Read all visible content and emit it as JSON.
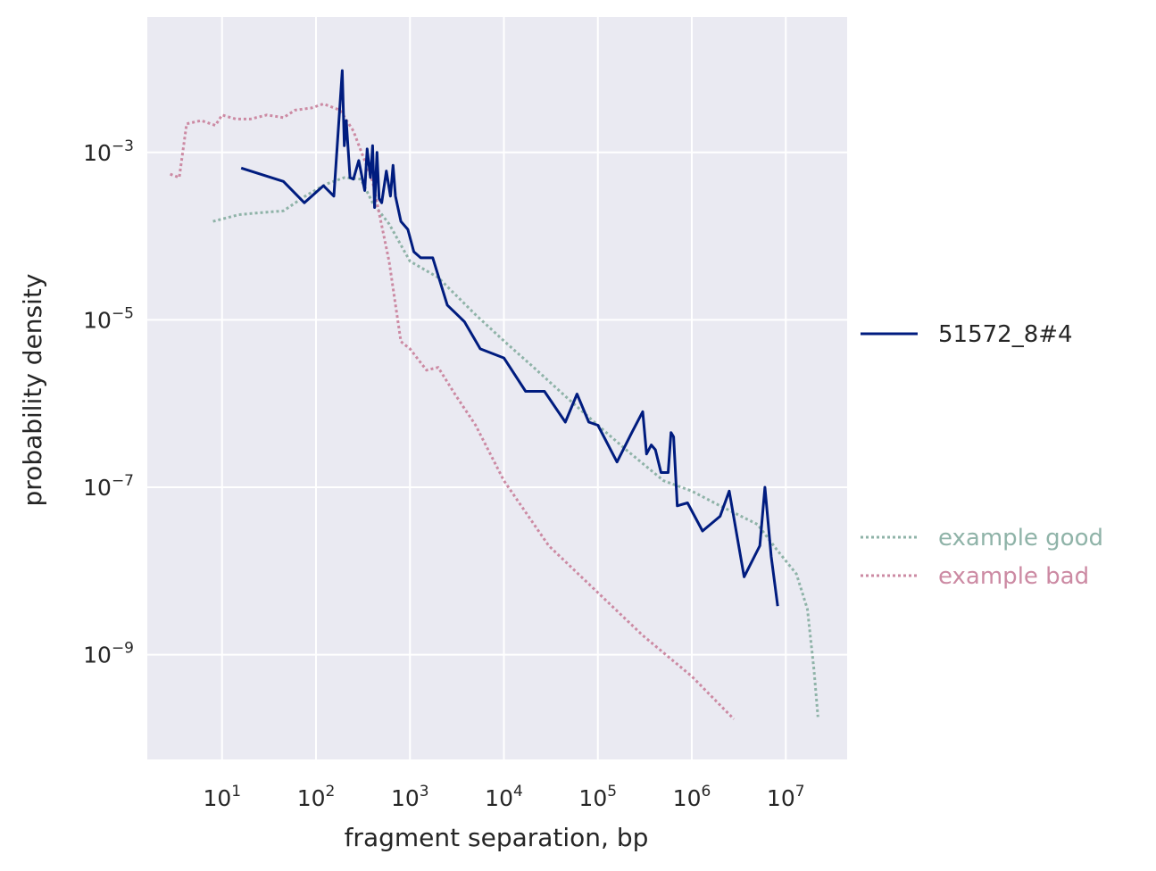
{
  "chart_data": {
    "type": "line",
    "title": "",
    "xlabel": "fragment separation, bp",
    "ylabel": "probability density",
    "xscale": "log",
    "yscale": "log",
    "xlim": [
      1.6,
      45000000
    ],
    "ylim": [
      5.6e-11,
      0.0415
    ],
    "grid": true,
    "x_ticks": [
      {
        "base": "10",
        "exp": "1",
        "value": 10
      },
      {
        "base": "10",
        "exp": "2",
        "value": 100
      },
      {
        "base": "10",
        "exp": "3",
        "value": 1000
      },
      {
        "base": "10",
        "exp": "4",
        "value": 10000
      },
      {
        "base": "10",
        "exp": "5",
        "value": 100000
      },
      {
        "base": "10",
        "exp": "6",
        "value": 1000000
      },
      {
        "base": "10",
        "exp": "7",
        "value": 10000000
      }
    ],
    "y_ticks": [
      {
        "base": "10",
        "exp": "−3",
        "value": 0.001
      },
      {
        "base": "10",
        "exp": "−5",
        "value": 1e-05
      },
      {
        "base": "10",
        "exp": "−7",
        "value": 1e-07
      },
      {
        "base": "10",
        "exp": "−9",
        "value": 1e-09
      }
    ],
    "legend": {
      "placement": "right"
    },
    "series": [
      {
        "name": "51572_8#4",
        "color": "#001c7f",
        "style": "solid",
        "points": [
          [
            16,
            0.00065
          ],
          [
            45,
            0.00045
          ],
          [
            75,
            0.00025
          ],
          [
            120,
            0.0004
          ],
          [
            155,
            0.0003
          ],
          [
            190,
            0.0095
          ],
          [
            200,
            0.0012
          ],
          [
            210,
            0.0024
          ],
          [
            230,
            0.0005
          ],
          [
            250,
            0.00048
          ],
          [
            285,
            0.0008
          ],
          [
            330,
            0.00035
          ],
          [
            350,
            0.0011
          ],
          [
            380,
            0.0005
          ],
          [
            400,
            0.0012
          ],
          [
            420,
            0.00022
          ],
          [
            445,
            0.001
          ],
          [
            470,
            0.00028
          ],
          [
            500,
            0.00025
          ],
          [
            560,
            0.0006
          ],
          [
            620,
            0.0003
          ],
          [
            660,
            0.0007
          ],
          [
            700,
            0.0003
          ],
          [
            800,
            0.00015
          ],
          [
            950,
            0.00012
          ],
          [
            1100,
            6.5e-05
          ],
          [
            1300,
            5.5e-05
          ],
          [
            1750,
            5.5e-05
          ],
          [
            2500,
            1.5e-05
          ],
          [
            3800,
            9.5e-06
          ],
          [
            5600,
            4.5e-06
          ],
          [
            10000,
            3.5e-06
          ],
          [
            17000,
            1.4e-06
          ],
          [
            27000,
            1.4e-06
          ],
          [
            45000,
            6e-07
          ],
          [
            60000,
            1.3e-06
          ],
          [
            80000,
            6e-07
          ],
          [
            100000,
            5.5e-07
          ],
          [
            160000,
            2e-07
          ],
          [
            230000,
            4.5e-07
          ],
          [
            300000,
            8e-07
          ],
          [
            330000,
            2.5e-07
          ],
          [
            370000,
            3.2e-07
          ],
          [
            410000,
            2.8e-07
          ],
          [
            470000,
            1.5e-07
          ],
          [
            560000,
            1.5e-07
          ],
          [
            600000,
            4.5e-07
          ],
          [
            640000,
            4e-07
          ],
          [
            700000,
            6e-08
          ],
          [
            900000,
            6.5e-08
          ],
          [
            1300000,
            3e-08
          ],
          [
            2000000,
            4.5e-08
          ],
          [
            2500000,
            9e-08
          ],
          [
            3600000,
            8.5e-09
          ],
          [
            5300000,
            2e-08
          ],
          [
            6000000,
            1e-07
          ],
          [
            7000000,
            1.5e-08
          ],
          [
            8200000,
            3.8e-09
          ]
        ]
      },
      {
        "name": "example good",
        "color": "#8fb3a8",
        "style": "dotted",
        "points": [
          [
            8,
            0.00015
          ],
          [
            15,
            0.00018
          ],
          [
            25,
            0.00019
          ],
          [
            45,
            0.0002
          ],
          [
            80,
            0.00031
          ],
          [
            130,
            0.00042
          ],
          [
            200,
            0.0005
          ],
          [
            300,
            0.00048
          ],
          [
            400,
            0.00025
          ],
          [
            600,
            0.00014
          ],
          [
            1000,
            5e-05
          ],
          [
            2000,
            3.2e-05
          ],
          [
            5000,
            1.15e-05
          ],
          [
            10000,
            5.6e-06
          ],
          [
            20000,
            2.8e-06
          ],
          [
            50000,
            1.1e-06
          ],
          [
            100000,
            5.5e-07
          ],
          [
            200000,
            2.8e-07
          ],
          [
            500000,
            1.2e-07
          ],
          [
            1000000,
            9e-08
          ],
          [
            2000000,
            6e-08
          ],
          [
            5000000,
            3.6e-08
          ],
          [
            8000000,
            1.8e-08
          ],
          [
            13000000,
            9.2e-09
          ],
          [
            17000000,
            3.5e-09
          ],
          [
            20000000,
            6.5e-10
          ],
          [
            22000000,
            1.8e-10
          ]
        ]
      },
      {
        "name": "example bad",
        "color": "#cc8aa3",
        "style": "dotted",
        "points": [
          [
            2.8,
            0.00055
          ],
          [
            3.5,
            0.0005
          ],
          [
            4.2,
            0.0022
          ],
          [
            6,
            0.0024
          ],
          [
            8.5,
            0.0021
          ],
          [
            10,
            0.0028
          ],
          [
            14,
            0.0025
          ],
          [
            20,
            0.0025
          ],
          [
            30,
            0.0028
          ],
          [
            45,
            0.0026
          ],
          [
            60,
            0.0032
          ],
          [
            90,
            0.0034
          ],
          [
            120,
            0.0038
          ],
          [
            180,
            0.0032
          ],
          [
            250,
            0.0018
          ],
          [
            400,
            0.00045
          ],
          [
            600,
            5e-05
          ],
          [
            800,
            5.5e-06
          ],
          [
            1000,
            4.5e-06
          ],
          [
            1500,
            2.5e-06
          ],
          [
            2000,
            2.7e-06
          ],
          [
            3000,
            1.3e-06
          ],
          [
            5000,
            5.5e-07
          ],
          [
            10000,
            1.2e-07
          ],
          [
            30000,
            2e-08
          ],
          [
            100000,
            5.5e-09
          ],
          [
            300000,
            1.7e-09
          ],
          [
            1000000,
            5.5e-10
          ],
          [
            2800000,
            1.7e-10
          ]
        ]
      }
    ]
  }
}
